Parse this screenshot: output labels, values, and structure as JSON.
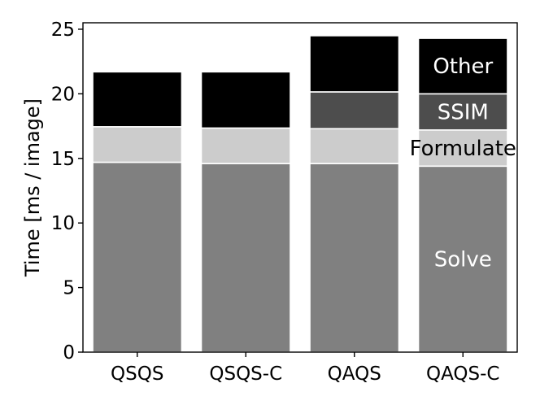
{
  "chart_data": {
    "type": "bar",
    "stacked": true,
    "categories": [
      "QSQS",
      "QSQS-C",
      "QAQS",
      "QAQS-C"
    ],
    "ylabel": "Time [ms / image]",
    "xlabel": "",
    "ylim": [
      0,
      25.5
    ],
    "yticks": [
      "0",
      "5",
      "10",
      "15",
      "20",
      "25"
    ],
    "series": [
      {
        "name": "Solve",
        "color": "#808080",
        "values": [
          14.7,
          14.6,
          14.6,
          14.4
        ]
      },
      {
        "name": "Formulate",
        "color": "#cccccc",
        "values": [
          2.75,
          2.75,
          2.7,
          2.8
        ]
      },
      {
        "name": "SSIM",
        "color": "#4d4d4d",
        "values": [
          0,
          0,
          2.85,
          2.8
        ]
      },
      {
        "name": "Other",
        "color": "#000000",
        "values": [
          4.25,
          4.35,
          4.35,
          4.3
        ]
      }
    ],
    "annotations": [
      "Other",
      "SSIM",
      "Formulate",
      "Solve"
    ],
    "legend": "inline labels on the QAQS-C bar",
    "grid": false
  }
}
